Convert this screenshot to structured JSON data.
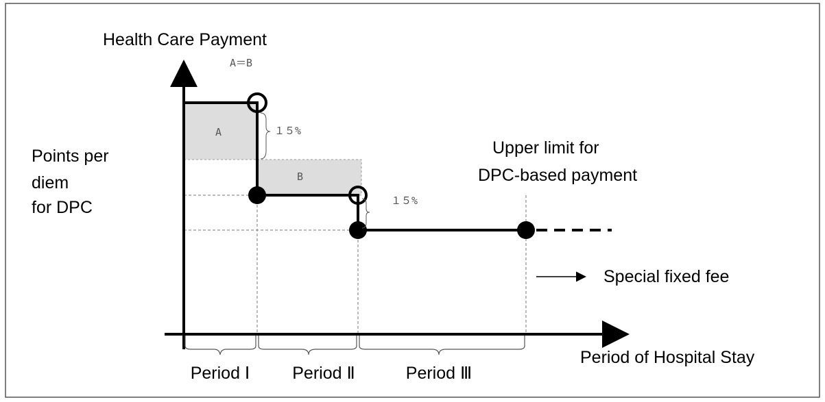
{
  "y_axis_label": "Health Care Payment",
  "equality_note": "A＝B",
  "areas": [
    "A",
    "B"
  ],
  "reductions": [
    "１５%",
    "１５%"
  ],
  "points_label": [
    "Points per",
    "diem",
    "for DPC"
  ],
  "upper_limit_label": [
    "Upper limit for",
    "DPC-based payment"
  ],
  "special_fee_label": "Special fixed fee",
  "x_axis_label": "Period of Hospital Stay",
  "periods": [
    "Period Ⅰ",
    "Period Ⅱ",
    "Period Ⅲ"
  ]
}
